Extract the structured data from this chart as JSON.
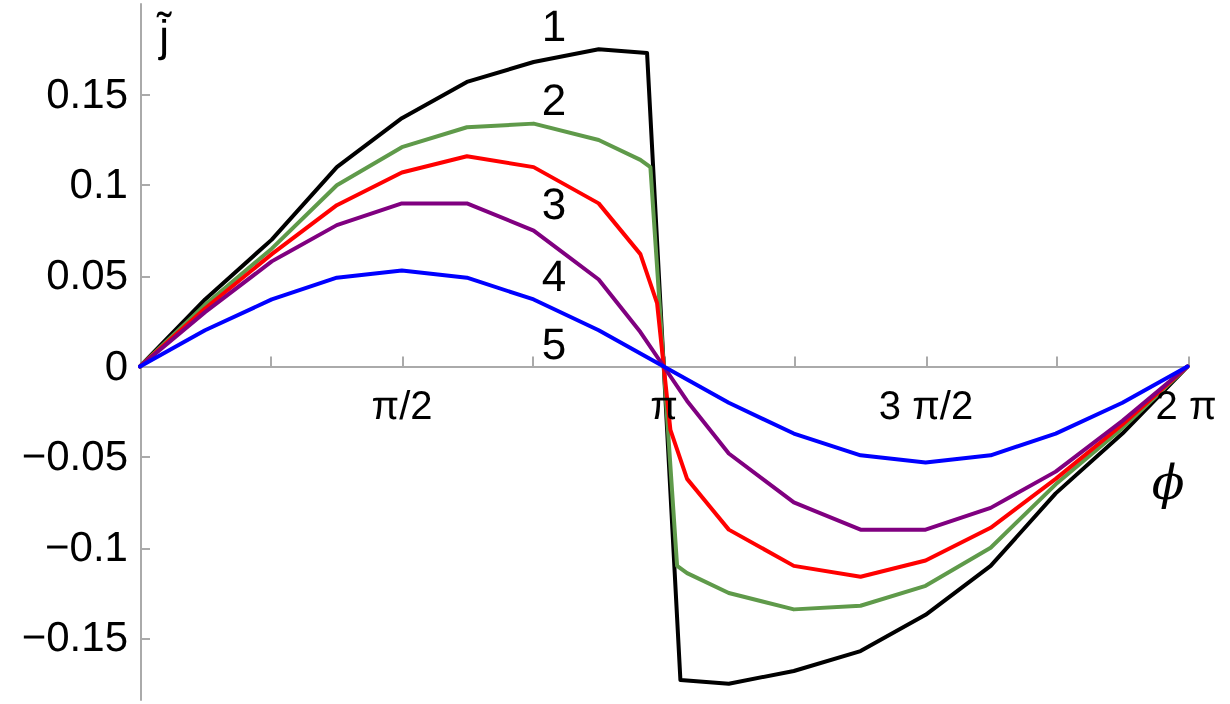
{
  "chart_data": {
    "type": "line",
    "xlabel": "ϕ",
    "ylabel": "j̃",
    "xlim": [
      0,
      6.2832
    ],
    "ylim": [
      -0.184,
      0.2
    ],
    "xticks": [
      {
        "value": 0.7854,
        "label": null
      },
      {
        "value": 1.5708,
        "label": "π/2"
      },
      {
        "value": 2.3562,
        "label": null
      },
      {
        "value": 3.1416,
        "label": "π"
      },
      {
        "value": 3.927,
        "label": null
      },
      {
        "value": 4.7124,
        "label": "3 π/2"
      },
      {
        "value": 5.4978,
        "label": null
      },
      {
        "value": 6.2832,
        "label": "2 π"
      }
    ],
    "yticks": [
      {
        "value": -0.15,
        "label": "−0.15"
      },
      {
        "value": -0.1,
        "label": "−0.1"
      },
      {
        "value": -0.05,
        "label": "−0.05"
      },
      0,
      0.05,
      0.1,
      0.15
    ],
    "grid": false,
    "marker": "none",
    "line_style": "solid",
    "series": [
      {
        "color": "#000000",
        "x": [
          0,
          0.39,
          0.79,
          1.18,
          1.57,
          1.96,
          2.36,
          2.75,
          3.04,
          3.24,
          3.53,
          3.92,
          4.32,
          4.71,
          5.1,
          5.49,
          5.89,
          6.28
        ],
        "values": [
          0,
          0.037,
          0.07,
          0.11,
          0.137,
          0.157,
          0.168,
          0.175,
          0.173,
          -0.173,
          -0.175,
          -0.168,
          -0.157,
          -0.137,
          -0.11,
          -0.07,
          -0.037,
          0
        ]
      },
      {
        "color": "#5f9a4a",
        "x": [
          0,
          0.39,
          0.79,
          1.18,
          1.57,
          1.96,
          2.36,
          2.75,
          3.0,
          3.06,
          3.22,
          3.28,
          3.53,
          3.92,
          4.32,
          4.71,
          5.1,
          5.49,
          5.89,
          6.28
        ],
        "values": [
          0,
          0.034,
          0.065,
          0.1,
          0.121,
          0.132,
          0.134,
          0.125,
          0.114,
          0.11,
          -0.11,
          -0.114,
          -0.125,
          -0.134,
          -0.132,
          -0.121,
          -0.1,
          -0.065,
          -0.034,
          0
        ]
      },
      {
        "color": "#ff0000",
        "x": [
          0,
          0.39,
          0.79,
          1.18,
          1.57,
          1.96,
          2.36,
          2.75,
          3.0,
          3.1,
          3.14,
          3.18,
          3.28,
          3.53,
          3.92,
          4.32,
          4.71,
          5.1,
          5.49,
          5.89,
          6.28
        ],
        "values": [
          0,
          0.032,
          0.062,
          0.089,
          0.107,
          0.116,
          0.11,
          0.09,
          0.062,
          0.035,
          0,
          -0.035,
          -0.062,
          -0.09,
          -0.11,
          -0.116,
          -0.107,
          -0.089,
          -0.062,
          -0.032,
          0
        ]
      },
      {
        "color": "#800080",
        "x": [
          0,
          0.39,
          0.79,
          1.18,
          1.57,
          1.96,
          2.36,
          2.75,
          3.0,
          3.14,
          3.28,
          3.53,
          3.92,
          4.32,
          4.71,
          5.1,
          5.49,
          5.89,
          6.28
        ],
        "values": [
          0,
          0.03,
          0.058,
          0.078,
          0.09,
          0.09,
          0.075,
          0.048,
          0.019,
          0,
          -0.019,
          -0.048,
          -0.075,
          -0.09,
          -0.09,
          -0.078,
          -0.058,
          -0.03,
          0
        ]
      },
      {
        "color": "#0000ff",
        "x": [
          0,
          0.39,
          0.79,
          1.18,
          1.57,
          1.96,
          2.36,
          2.75,
          3.14,
          3.53,
          3.92,
          4.32,
          4.71,
          5.1,
          5.49,
          5.89,
          6.28
        ],
        "values": [
          0,
          0.02,
          0.037,
          0.049,
          0.053,
          0.049,
          0.037,
          0.02,
          0,
          -0.02,
          -0.037,
          -0.049,
          -0.053,
          -0.049,
          -0.037,
          -0.02,
          0
        ]
      }
    ],
    "annotations": [
      "1",
      "2",
      "3",
      "4",
      "5"
    ]
  }
}
